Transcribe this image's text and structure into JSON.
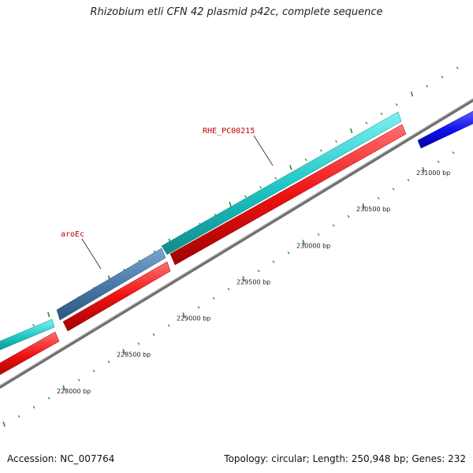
{
  "title": "Rhizobium etli CFN 42 plasmid p42c, complete sequence",
  "footer": {
    "accession": "Accession: NC_007764",
    "summary": "Topology: circular; Length: 250,948 bp; Genes: 232"
  },
  "colors": {
    "cyan_feature": "#20c8c8",
    "steelblue_feature": "#4a7aaa",
    "red_feature": "#ee1111",
    "blue_feature": "#1111ee",
    "backbone": "#909090",
    "tick": "#2a8a2a",
    "gene_label": "#c00000"
  },
  "scale_labels": [
    {
      "bp": 228000,
      "text": "228000 bp"
    },
    {
      "bp": 228500,
      "text": "228500 bp"
    },
    {
      "bp": 229000,
      "text": "229000 bp"
    },
    {
      "bp": 229500,
      "text": "229500 bp"
    },
    {
      "bp": 230000,
      "text": "230000 bp"
    },
    {
      "bp": 230500,
      "text": "230500 bp"
    },
    {
      "bp": 231000,
      "text": "231000 bp"
    }
  ],
  "gene_labels": [
    {
      "text": "RHE_PC00215"
    },
    {
      "text": "aroEc"
    }
  ]
}
